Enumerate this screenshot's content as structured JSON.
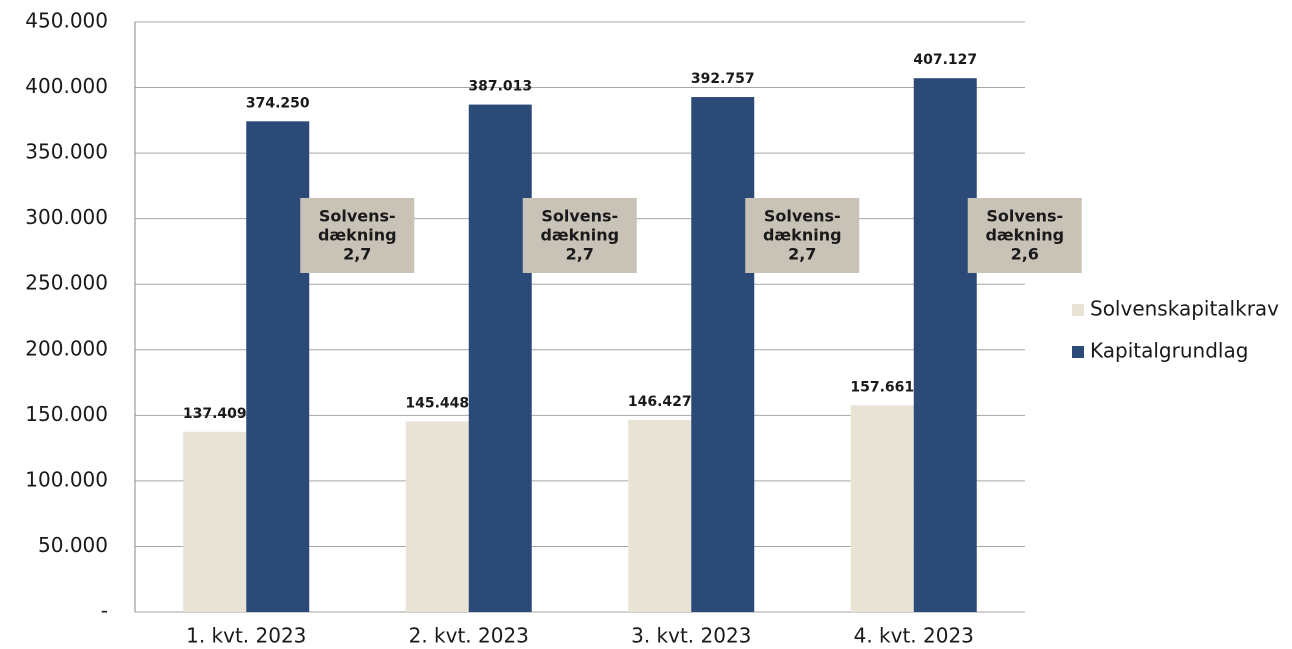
{
  "chart_data": {
    "type": "bar",
    "categories": [
      "1. kvt. 2023",
      "2. kvt. 2023",
      "3. kvt. 2023",
      "4. kvt. 2023"
    ],
    "series": [
      {
        "name": "Solvenskapitalkrav",
        "color": "#e9e3d6",
        "values": [
          137409,
          145448,
          146427,
          157661
        ],
        "value_labels": [
          "137.409",
          "145.448",
          "146.427",
          "157.661"
        ]
      },
      {
        "name": "Kapitalgrundlag",
        "color": "#2c4a78",
        "values": [
          374250,
          387013,
          392757,
          407127
        ],
        "value_labels": [
          "374.250",
          "387.013",
          "392.757",
          "407.127"
        ]
      }
    ],
    "annotations": [
      [
        "Solvens-",
        "dækning",
        "2,7"
      ],
      [
        "Solvens-",
        "dækning",
        "2,7"
      ],
      [
        "Solvens-",
        "dækning",
        "2,7"
      ],
      [
        "Solvens-",
        "dækning",
        "2,6"
      ]
    ],
    "ylim": [
      0,
      450000
    ],
    "yticks": [
      {
        "value": 0,
        "label": "-"
      },
      {
        "value": 50000,
        "label": "50.000"
      },
      {
        "value": 100000,
        "label": "100.000"
      },
      {
        "value": 150000,
        "label": "150.000"
      },
      {
        "value": 200000,
        "label": "200.000"
      },
      {
        "value": 250000,
        "label": "250.000"
      },
      {
        "value": 300000,
        "label": "300.000"
      },
      {
        "value": 350000,
        "label": "350.000"
      },
      {
        "value": 400000,
        "label": "400.000"
      },
      {
        "value": 450000,
        "label": "450.000"
      }
    ],
    "grid": true,
    "legend": "right"
  }
}
